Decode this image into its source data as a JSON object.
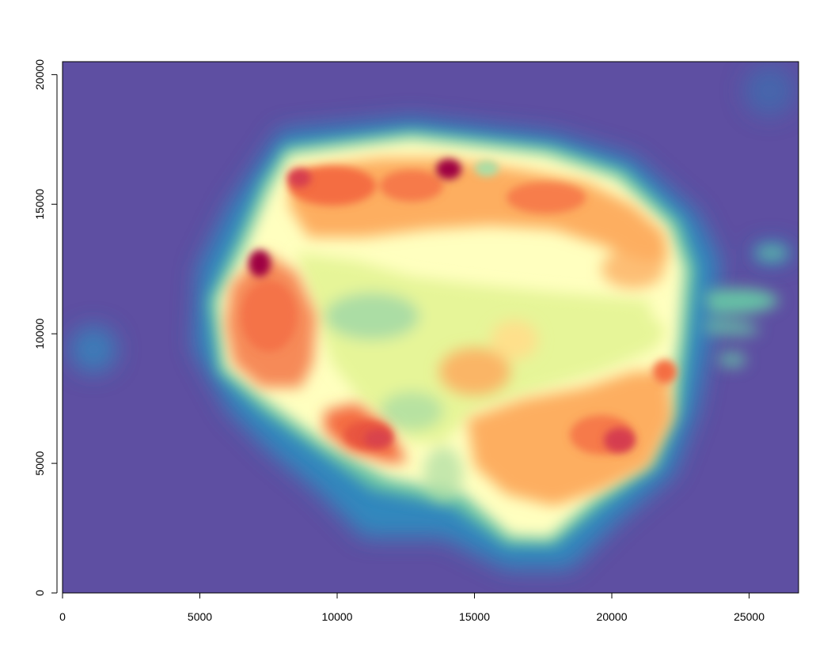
{
  "chart_data": {
    "type": "heatmap",
    "title": "",
    "xlabel": "",
    "ylabel": "",
    "xlim": [
      0,
      26800
    ],
    "ylim": [
      0,
      20500
    ],
    "x_ticks": [
      0,
      5000,
      10000,
      15000,
      20000,
      25000
    ],
    "x_tick_labels": [
      "0",
      "5000",
      "10000",
      "15000",
      "20000",
      "25000"
    ],
    "y_ticks": [
      0,
      5000,
      10000,
      15000,
      20000
    ],
    "y_tick_labels": [
      "0",
      "5000",
      "10000",
      "15000",
      "20000"
    ],
    "colormap": [
      "#5e4fa2",
      "#3288bd",
      "#66c2a5",
      "#abdda4",
      "#e6f598",
      "#ffffbf",
      "#fee08b",
      "#fdae61",
      "#f46d43",
      "#d53e4f",
      "#9e0142"
    ],
    "background_color": "#5e4fa2",
    "grid": false,
    "legend": "none"
  }
}
